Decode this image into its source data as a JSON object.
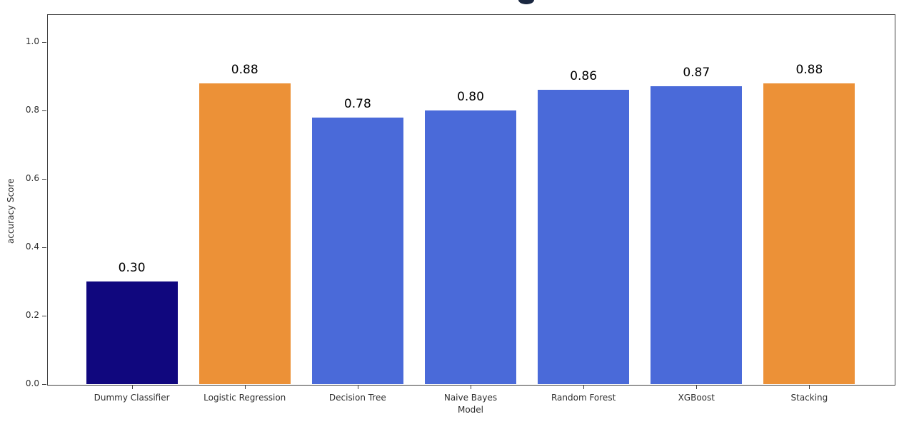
{
  "figure": {
    "background": "#ffffff",
    "title_fragment": {
      "note": "bottom descender of a cropped chart title glyph at top center",
      "color": "#1a2740"
    },
    "spine_color": "#3f3f3f",
    "tick_text_color": "#2e2e2e",
    "value_label_color": "#000000"
  },
  "chart_data": {
    "type": "bar",
    "title": "",
    "categories": [
      "Dummy Classifier",
      "Logistic Regression",
      "Decision Tree",
      "Naive Bayes",
      "Random Forest",
      "XGBoost",
      "Stacking"
    ],
    "values": [
      0.3,
      0.88,
      0.78,
      0.8,
      0.86,
      0.87,
      0.88
    ],
    "value_labels": [
      "0.30",
      "0.88",
      "0.78",
      "0.80",
      "0.86",
      "0.87",
      "0.88"
    ],
    "bar_colors": [
      "#10077e",
      "#ec9137",
      "#4a6ad9",
      "#4a6ad9",
      "#4a6ad9",
      "#4a6ad9",
      "#ec9137"
    ],
    "xlabel": "Model",
    "ylabel": "accuracy Score",
    "yticks": [
      "0.0",
      "0.2",
      "0.4",
      "0.6",
      "0.8",
      "1.0"
    ],
    "ytick_values": [
      0.0,
      0.2,
      0.4,
      0.6,
      0.8,
      1.0
    ],
    "ylim": [
      0.0,
      1.081
    ],
    "xlim": [
      -0.75,
      6.75
    ],
    "grid": false,
    "legend": null
  }
}
